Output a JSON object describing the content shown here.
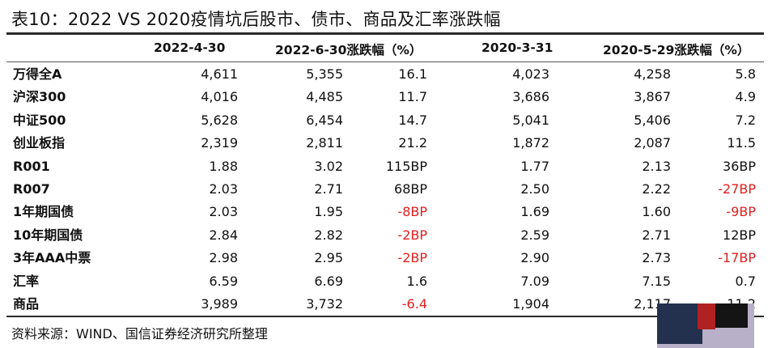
{
  "title": "表10：2022 VS 2020疫情坑后股市、债市、商品及汇率涨跌幅",
  "headers": [
    "2022-4-30",
    "2022-6-30涨跌幅（%）",
    "2020-3-31",
    "2020-5-29涨跌幅（%）"
  ],
  "rows": [
    {
      "label": "万得全A",
      "c1": "4,611",
      "c2": "5,355",
      "c3": "16.1",
      "c4": "4,023",
      "c5": "4,258",
      "c6": "5.8"
    },
    {
      "label": "沪深300",
      "c1": "4,016",
      "c2": "4,485",
      "c3": "11.7",
      "c4": "3,686",
      "c5": "3,867",
      "c6": "4.9"
    },
    {
      "label": "中证500",
      "c1": "5,628",
      "c2": "6,454",
      "c3": "14.7",
      "c4": "5,041",
      "c5": "5,406",
      "c6": "7.2"
    },
    {
      "label": "创业板指",
      "c1": "2,319",
      "c2": "2,811",
      "c3": "21.2",
      "c4": "1,872",
      "c5": "2,087",
      "c6": "11.5"
    },
    {
      "label": "R001",
      "c1": "1.88",
      "c2": "3.02",
      "c3": "115BP",
      "c4": "1.77",
      "c5": "2.13",
      "c6": "36BP"
    },
    {
      "label": "R007",
      "c1": "2.03",
      "c2": "2.71",
      "c3": "68BP",
      "c4": "2.50",
      "c5": "2.22",
      "c6": "-27BP"
    },
    {
      "label": "1年期国债",
      "c1": "2.03",
      "c2": "1.95",
      "c3": "-8BP",
      "c4": "1.69",
      "c5": "1.60",
      "c6": "-9BP"
    },
    {
      "label": "10年期国债",
      "c1": "2.84",
      "c2": "2.82",
      "c3": "-2BP",
      "c4": "2.59",
      "c5": "2.71",
      "c6": "12BP"
    },
    {
      "label": "3年AAA中票",
      "c1": "2.98",
      "c2": "2.95",
      "c3": "-2BP",
      "c4": "2.90",
      "c5": "2.73",
      "c6": "-17BP"
    },
    {
      "label": "汇率",
      "c1": "6.59",
      "c2": "6.69",
      "c3": "1.6",
      "c4": "7.09",
      "c5": "7.15",
      "c6": "0.7"
    },
    {
      "label": "商品",
      "c1": "3,989",
      "c2": "3,732",
      "c3": "-6.4",
      "c4": "1,904",
      "c5": "2,117",
      "c6": "11.2"
    }
  ],
  "source": "资料来源：WIND、国信证券经济研究所整理",
  "colors": {
    "negative": "#e02020",
    "text": "#111111"
  }
}
